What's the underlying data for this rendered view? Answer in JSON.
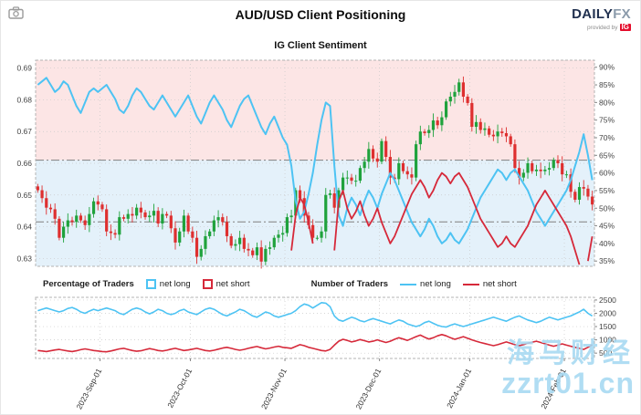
{
  "header": {
    "title": "AUD/USD Client Positioning",
    "subtitle": "IG Client Sentiment",
    "logo_daily": "DAILY",
    "logo_fx": "FX",
    "provided_by": "provided by",
    "ig": "IG"
  },
  "legend": {
    "pct_group": "Percentage of Traders",
    "num_group": "Number of Traders",
    "net_long": "net long",
    "net_short": "net short"
  },
  "watermark": {
    "line1": "海马财经",
    "line2": "zzrt01.cn"
  },
  "colors": {
    "up": "#1fa23c",
    "down": "#de2f2f",
    "net_long": "#4dc3f3",
    "net_short": "#d6293a",
    "bg_upper": "#fce5e5",
    "bg_lower": "#e4f1fa",
    "grid": "#c9c9c9",
    "axis_text": "#444444",
    "ref_line": "#8c8c8c",
    "watermark": "#a6d9f2"
  },
  "chart_data": [
    {
      "type": "candlestick+line",
      "title": "IG Client Sentiment",
      "price_axis": {
        "side": "left",
        "ticks": [
          "0.69",
          "0.68",
          "0.67",
          "0.66",
          "0.65",
          "0.64",
          "0.63"
        ],
        "ylim": [
          0.6275,
          0.6925
        ]
      },
      "percent_axis": {
        "side": "right",
        "ticks": [
          "90%",
          "85%",
          "80%",
          "75%",
          "70%",
          "65%",
          "60%",
          "55%",
          "50%",
          "45%",
          "40%",
          "35%"
        ],
        "ylim": [
          33.5,
          92
        ]
      },
      "reference_levels": [
        0.661,
        0.6415
      ],
      "background_split_level": 0.661,
      "candles_close": [
        0.6515,
        0.649,
        0.646,
        0.6455,
        0.6425,
        0.6365,
        0.64,
        0.642,
        0.6415,
        0.6435,
        0.642,
        0.6405,
        0.644,
        0.648,
        0.647,
        0.6455,
        0.6385,
        0.638,
        0.6375,
        0.643,
        0.6425,
        0.644,
        0.6435,
        0.646,
        0.6445,
        0.643,
        0.6435,
        0.645,
        0.641,
        0.644,
        0.6435,
        0.6395,
        0.635,
        0.6385,
        0.6435,
        0.6385,
        0.6365,
        0.6305,
        0.633,
        0.637,
        0.6385,
        0.642,
        0.643,
        0.6415,
        0.637,
        0.634,
        0.6345,
        0.6365,
        0.633,
        0.6325,
        0.631,
        0.6335,
        0.629,
        0.633,
        0.6335,
        0.6365,
        0.6375,
        0.638,
        0.643,
        0.6435,
        0.6515,
        0.649,
        0.6435,
        0.6405,
        0.6365,
        0.6365,
        0.6385,
        0.65,
        0.6505,
        0.646,
        0.6515,
        0.6555,
        0.6555,
        0.6545,
        0.6545,
        0.6585,
        0.6605,
        0.6645,
        0.6615,
        0.6605,
        0.667,
        0.662,
        0.6555,
        0.655,
        0.66,
        0.6575,
        0.6565,
        0.6555,
        0.666,
        0.67,
        0.6695,
        0.6705,
        0.6735,
        0.672,
        0.6745,
        0.6795,
        0.681,
        0.6825,
        0.6855,
        0.681,
        0.679,
        0.6715,
        0.673,
        0.6705,
        0.671,
        0.669,
        0.6685,
        0.67,
        0.6695,
        0.6685,
        0.666,
        0.6585,
        0.6555,
        0.657,
        0.66,
        0.6575,
        0.658,
        0.6575,
        0.658,
        0.6585,
        0.661,
        0.66,
        0.6565,
        0.6565,
        0.651,
        0.6485,
        0.6525,
        0.652,
        0.6495,
        0.647
      ],
      "sentiment_net_long_pct": [
        85,
        86,
        87,
        85,
        83,
        84,
        86,
        85,
        82,
        79,
        77,
        80,
        83,
        84,
        83,
        84,
        85,
        83,
        81,
        78,
        77,
        79,
        82,
        84,
        83,
        81,
        79,
        78,
        80,
        82,
        80,
        78,
        76,
        78,
        80,
        82,
        79,
        76,
        74,
        77,
        80,
        82,
        80,
        78,
        75,
        73,
        76,
        79,
        81,
        82,
        79,
        76,
        73,
        71,
        74,
        76,
        73,
        70,
        68,
        62,
        52,
        47,
        49,
        54,
        60,
        68,
        75,
        80,
        79,
        62,
        48,
        45,
        50,
        53,
        51,
        48,
        52,
        55,
        53,
        50,
        54,
        57,
        60,
        58,
        55,
        52,
        49,
        46,
        44,
        42,
        44,
        47,
        45,
        42,
        40,
        41,
        43,
        41,
        40,
        42,
        44,
        47,
        50,
        53,
        55,
        57,
        59,
        61,
        60,
        58,
        60,
        61,
        59,
        57,
        55,
        52,
        49,
        47,
        45,
        47,
        49,
        51,
        53,
        55,
        58,
        62,
        66,
        71,
        65,
        58
      ],
      "sentiment_net_short_pct_rule": "100_minus_net_long"
    },
    {
      "type": "line",
      "axis": {
        "side": "right",
        "ticks": [
          "2500",
          "2000",
          "1500",
          "1000",
          "500"
        ],
        "ylim": [
          300,
          2600
        ]
      },
      "x_labels": [
        "2023-Sep-01",
        "2023-Oct-01",
        "2023-Nov-01",
        "2023-Dec-01",
        "2024-Jan-01",
        "2024-Feb-01"
      ],
      "month_indices": [
        15,
        36,
        58,
        80,
        101,
        123
      ],
      "series": [
        {
          "name": "net long",
          "values": [
            2100,
            2150,
            2200,
            2150,
            2100,
            2050,
            2100,
            2180,
            2220,
            2150,
            2050,
            2000,
            2080,
            2150,
            2100,
            2150,
            2200,
            2150,
            2100,
            2000,
            1950,
            2050,
            2150,
            2200,
            2150,
            2050,
            1980,
            2050,
            2150,
            2100,
            2000,
            1950,
            2000,
            2100,
            2150,
            2050,
            2000,
            1950,
            2050,
            2150,
            2200,
            2150,
            2050,
            1950,
            1900,
            1980,
            2050,
            2150,
            2100,
            2000,
            1900,
            1850,
            1950,
            2050,
            2000,
            1900,
            1850,
            1900,
            1950,
            2000,
            2100,
            2250,
            2350,
            2300,
            2200,
            2300,
            2400,
            2380,
            2250,
            1900,
            1750,
            1700,
            1780,
            1850,
            1800,
            1720,
            1680,
            1750,
            1800,
            1750,
            1700,
            1650,
            1600,
            1680,
            1750,
            1700,
            1600,
            1550,
            1500,
            1550,
            1650,
            1700,
            1620,
            1550,
            1500,
            1480,
            1550,
            1600,
            1550,
            1500,
            1550,
            1600,
            1650,
            1700,
            1750,
            1800,
            1850,
            1800,
            1750,
            1700,
            1780,
            1850,
            1900,
            1820,
            1750,
            1700,
            1650,
            1700,
            1780,
            1850,
            1800,
            1750,
            1800,
            1850,
            1900,
            1980,
            2050,
            2150,
            2000,
            1900
          ]
        },
        {
          "name": "net short",
          "values": [
            600,
            580,
            560,
            590,
            620,
            640,
            610,
            580,
            560,
            590,
            630,
            660,
            630,
            600,
            580,
            560,
            550,
            580,
            620,
            660,
            680,
            640,
            600,
            570,
            590,
            630,
            670,
            640,
            600,
            580,
            610,
            650,
            680,
            640,
            600,
            620,
            650,
            680,
            640,
            600,
            580,
            610,
            650,
            690,
            720,
            680,
            640,
            610,
            640,
            680,
            720,
            750,
            700,
            660,
            690,
            730,
            760,
            720,
            700,
            680,
            750,
            820,
            780,
            720,
            680,
            640,
            600,
            580,
            640,
            800,
            950,
            1020,
            980,
            920,
            960,
            1010,
            970,
            920,
            950,
            1000,
            950,
            900,
            950,
            1020,
            1080,
            1030,
            980,
            1050,
            1120,
            1180,
            1100,
            1030,
            1080,
            1150,
            1200,
            1150,
            1080,
            1020,
            1070,
            1120,
            1060,
            1000,
            950,
            900,
            860,
            820,
            780,
            820,
            870,
            920,
            870,
            820,
            780,
            820,
            870,
            910,
            950,
            900,
            850,
            800,
            760,
            800,
            850,
            800,
            760,
            720,
            680,
            640,
            720,
            820
          ]
        }
      ]
    }
  ]
}
